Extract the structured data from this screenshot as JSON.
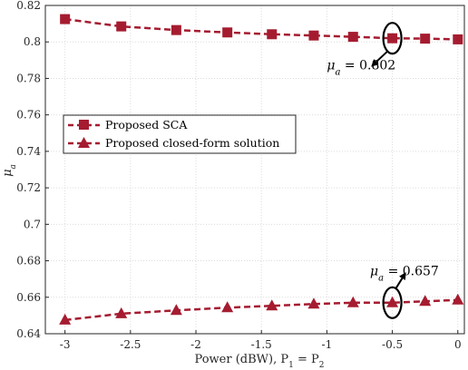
{
  "chart_data": {
    "type": "line",
    "xlabel": "Power (dBW),  P",
    "xlabel_sub1": "1",
    "xlabel_eq": " = P",
    "xlabel_sub2": "2",
    "ylabel": "μ",
    "ylabel_sub": "a",
    "xlim": [
      -3.15,
      0.05
    ],
    "ylim": [
      0.64,
      0.82
    ],
    "xticks": [
      -3,
      -2.5,
      -2,
      -1.5,
      -1,
      -0.5,
      0
    ],
    "xtick_labels": [
      "-3",
      "-2.5",
      "-2",
      "-1.5",
      "-1",
      "-0.5",
      "0"
    ],
    "yticks": [
      0.64,
      0.66,
      0.68,
      0.7,
      0.72,
      0.74,
      0.76,
      0.78,
      0.8,
      0.82
    ],
    "ytick_labels": [
      "0.64",
      "0.66",
      "0.68",
      "0.7",
      "0.72",
      "0.74",
      "0.76",
      "0.78",
      "0.8",
      "0.82"
    ],
    "grid": true,
    "legend_position": "center-left",
    "series": [
      {
        "name": "Proposed SCA",
        "marker": "square",
        "color": "#a51c30",
        "x": [
          -3,
          -2.57,
          -2.15,
          -1.76,
          -1.42,
          -1.1,
          -0.8,
          -0.5,
          -0.25,
          0
        ],
        "y": [
          0.8125,
          0.8085,
          0.8065,
          0.8052,
          0.8042,
          0.8035,
          0.8028,
          0.802,
          0.8018,
          0.8014
        ]
      },
      {
        "name": "Proposed closed-form solution",
        "marker": "triangle",
        "color": "#a51c30",
        "x": [
          -3,
          -2.57,
          -2.15,
          -1.76,
          -1.42,
          -1.1,
          -0.8,
          -0.5,
          -0.25,
          0
        ],
        "y": [
          0.6475,
          0.651,
          0.6528,
          0.6543,
          0.6553,
          0.6563,
          0.657,
          0.657,
          0.6578,
          0.6585
        ]
      }
    ],
    "annotations": [
      {
        "label": "μ",
        "sub": "a",
        "value": " = 0.802",
        "x": -0.5,
        "y": 0.802,
        "text_x": -1.0,
        "text_y": 0.785,
        "arrow": "from-ellipse-down-left"
      },
      {
        "label": "μ",
        "sub": "a",
        "value": " = 0.657",
        "x": -0.5,
        "y": 0.657,
        "text_x": -0.67,
        "text_y": 0.672,
        "arrow": "from-ellipse-up-right"
      }
    ]
  }
}
